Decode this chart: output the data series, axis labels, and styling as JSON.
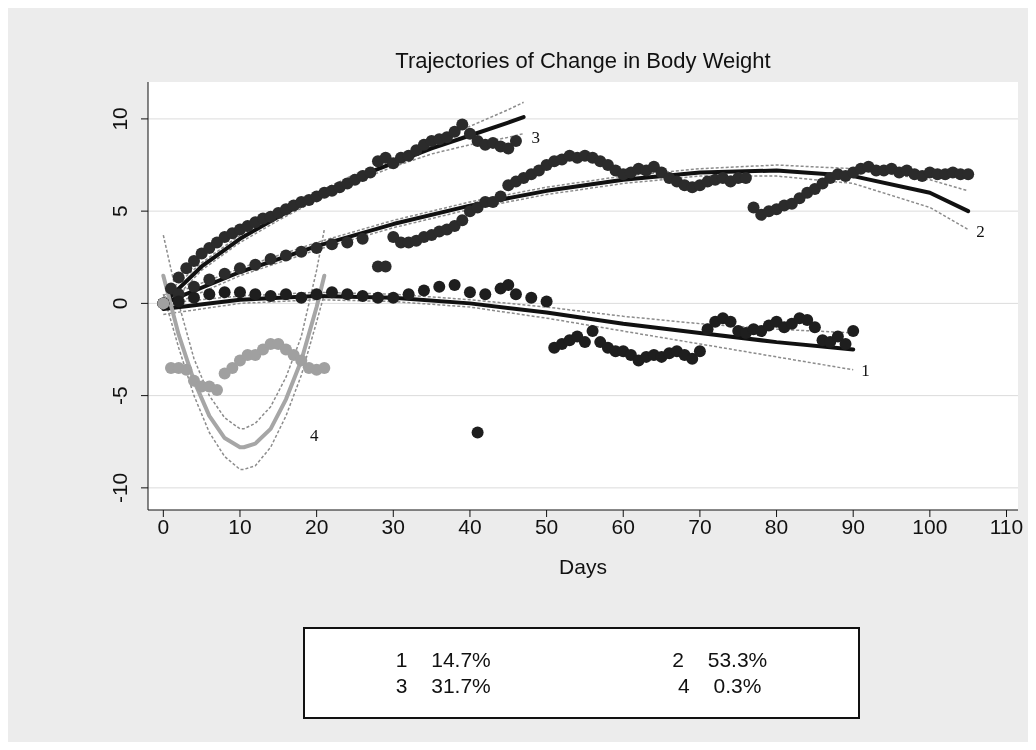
{
  "chart_data": {
    "type": "scatter",
    "title": "Trajectories  of Change  in Body Weight",
    "xlabel": "Days",
    "xlim": [
      -2,
      111.5
    ],
    "ylim": [
      -11.2,
      12
    ],
    "xticks": [
      0,
      10,
      20,
      30,
      40,
      50,
      60,
      70,
      80,
      90,
      100,
      110
    ],
    "yticks": [
      -10,
      -5,
      0,
      5,
      10
    ],
    "grid": "y",
    "marker": "circle",
    "annotations": [
      "1 14.7%",
      "2 53.3%",
      "3 31.7%",
      "4 0.3%"
    ],
    "series": [
      {
        "color": "#2b2b2b",
        "x": [
          0,
          1,
          2,
          3,
          4,
          5,
          6,
          7,
          8,
          9,
          10,
          11,
          12,
          13,
          14,
          15,
          16,
          17,
          18,
          19,
          20,
          21,
          22,
          23,
          24,
          25,
          26,
          27,
          28,
          29,
          30,
          31,
          32,
          33,
          34,
          35,
          36,
          37,
          38,
          39,
          40,
          41,
          42,
          43,
          44,
          45,
          46
        ],
        "values": [
          0,
          0.8,
          1.4,
          1.9,
          2.3,
          2.7,
          3.0,
          3.3,
          3.6,
          3.8,
          4.0,
          4.2,
          4.4,
          4.6,
          4.7,
          4.9,
          5.1,
          5.3,
          5.5,
          5.6,
          5.8,
          6.0,
          6.1,
          6.3,
          6.5,
          6.7,
          6.9,
          7.1,
          7.7,
          7.9,
          7.6,
          7.9,
          8.0,
          8.3,
          8.6,
          8.8,
          8.9,
          9.0,
          9.3,
          9.7,
          9.2,
          8.8,
          8.6,
          8.7,
          8.5,
          8.4,
          8.8
        ]
      },
      {
        "color": "#2b2b2b",
        "x": [
          0,
          2,
          4,
          6,
          8,
          10,
          12,
          14,
          16,
          18,
          20,
          22,
          24,
          26,
          28,
          29,
          30,
          31,
          32,
          33,
          34,
          35,
          36,
          37,
          38,
          39,
          40,
          41,
          42,
          43,
          44,
          45,
          46,
          47,
          48,
          49,
          50,
          51,
          52,
          53,
          54,
          55,
          56,
          57,
          58,
          59,
          60,
          61,
          62,
          63,
          64,
          65,
          66,
          67,
          68,
          69,
          70,
          71,
          72,
          73,
          74,
          75,
          76,
          77,
          78,
          79,
          80,
          81,
          82,
          83,
          84,
          85,
          86,
          87,
          88,
          89,
          90,
          91,
          92,
          93,
          94,
          95,
          96,
          97,
          98,
          99,
          100,
          101,
          102,
          103,
          104,
          105
        ],
        "values": [
          0,
          0.5,
          0.9,
          1.3,
          1.6,
          1.9,
          2.1,
          2.4,
          2.6,
          2.8,
          3.0,
          3.2,
          3.3,
          3.5,
          2.0,
          2.0,
          3.6,
          3.3,
          3.3,
          3.4,
          3.6,
          3.7,
          3.9,
          4.0,
          4.2,
          4.5,
          5.0,
          5.2,
          5.5,
          5.5,
          5.8,
          6.4,
          6.6,
          6.8,
          7.0,
          7.2,
          7.5,
          7.7,
          7.8,
          8.0,
          7.9,
          8.0,
          7.9,
          7.7,
          7.5,
          7.2,
          7.0,
          7.1,
          7.3,
          7.2,
          7.4,
          7.1,
          6.8,
          6.6,
          6.4,
          6.3,
          6.4,
          6.6,
          6.7,
          6.8,
          6.6,
          6.8,
          6.8,
          5.2,
          4.8,
          5.0,
          5.1,
          5.3,
          5.4,
          5.7,
          6.0,
          6.2,
          6.5,
          6.8,
          7.0,
          6.9,
          7.1,
          7.3,
          7.4,
          7.2,
          7.2,
          7.3,
          7.1,
          7.2,
          7.0,
          6.9,
          7.1,
          7.0,
          7.0,
          7.1,
          7.0,
          7.0
        ]
      },
      {
        "color": "#1e1e1e",
        "x": [
          0,
          2,
          4,
          6,
          8,
          10,
          12,
          14,
          16,
          18,
          20,
          22,
          24,
          26,
          28,
          30,
          32,
          34,
          36,
          38,
          40,
          41,
          42,
          44,
          45,
          46,
          48,
          50,
          51,
          52,
          53,
          54,
          55,
          56,
          57,
          58,
          59,
          60,
          61,
          62,
          63,
          64,
          65,
          66,
          67,
          68,
          69,
          70,
          71,
          72,
          73,
          74,
          75,
          76,
          77,
          78,
          79,
          80,
          81,
          82,
          83,
          84,
          85,
          86,
          87,
          88,
          89,
          90
        ],
        "values": [
          0,
          0.1,
          0.3,
          0.5,
          0.6,
          0.6,
          0.5,
          0.4,
          0.5,
          0.3,
          0.5,
          0.6,
          0.5,
          0.4,
          0.3,
          0.3,
          0.5,
          0.7,
          0.9,
          1.0,
          0.6,
          -7.0,
          0.5,
          0.8,
          1.0,
          0.5,
          0.3,
          0.1,
          -2.4,
          -2.2,
          -2.0,
          -1.8,
          -2.1,
          -1.5,
          -2.1,
          -2.4,
          -2.6,
          -2.6,
          -2.8,
          -3.1,
          -2.9,
          -2.8,
          -2.9,
          -2.7,
          -2.6,
          -2.8,
          -3.0,
          -2.6,
          -1.4,
          -1.0,
          -0.8,
          -1.0,
          -1.5,
          -1.6,
          -1.4,
          -1.5,
          -1.2,
          -1.0,
          -1.3,
          -1.1,
          -0.8,
          -0.9,
          -1.3,
          -2.0,
          -2.1,
          -1.8,
          -2.2,
          -1.5
        ]
      },
      {
        "color": "#a0a0a0",
        "x": [
          0,
          1,
          2,
          3,
          4,
          5,
          6,
          7,
          8,
          9,
          10,
          11,
          12,
          13,
          14,
          15,
          16,
          17,
          18,
          19,
          20,
          21
        ],
        "values": [
          0,
          -3.5,
          -3.5,
          -3.6,
          -4.2,
          -4.5,
          -4.5,
          -4.7,
          -3.8,
          -3.5,
          -3.1,
          -2.8,
          -2.8,
          -2.5,
          -2.2,
          -2.2,
          -2.5,
          -2.8,
          -3.1,
          -3.5,
          -3.6,
          -3.5
        ]
      },
      {
        "type": "line",
        "marker": "none",
        "line_style": "dashed",
        "color": "#8c8c8c",
        "x": [
          0,
          10,
          20,
          30,
          40,
          50,
          60,
          70,
          80,
          90
        ],
        "values": [
          -0.6,
          0,
          0.2,
          0.1,
          -0.2,
          -0.8,
          -1.5,
          -2.2,
          -2.9,
          -3.6
        ]
      },
      {
        "type": "line",
        "marker": "none",
        "line_style": "dashed",
        "color": "#8c8c8c",
        "x": [
          0,
          10,
          20,
          30,
          40,
          50,
          60,
          70,
          80,
          90
        ],
        "values": [
          0,
          0.4,
          0.6,
          0.5,
          0.2,
          -0.2,
          -0.7,
          -1.1,
          -1.4,
          -1.6
        ]
      },
      {
        "type": "line",
        "marker": "none",
        "line_style": "dashed",
        "color": "#8c8c8c",
        "x": [
          0,
          10,
          20,
          30,
          40,
          50,
          60,
          70,
          80,
          90,
          100,
          105
        ],
        "values": [
          -0.3,
          1.5,
          2.9,
          4.1,
          5.1,
          5.9,
          6.5,
          6.9,
          6.9,
          6.5,
          5.2,
          4.0
        ]
      },
      {
        "type": "line",
        "marker": "none",
        "line_style": "dashed",
        "color": "#8c8c8c",
        "x": [
          0,
          10,
          20,
          30,
          40,
          50,
          60,
          70,
          80,
          90,
          100,
          105
        ],
        "values": [
          0.3,
          1.9,
          3.3,
          4.5,
          5.5,
          6.3,
          6.9,
          7.3,
          7.5,
          7.3,
          6.7,
          6.1
        ]
      },
      {
        "type": "line",
        "marker": "none",
        "line_style": "dashed",
        "color": "#8c8c8c",
        "x": [
          0,
          5,
          10,
          15,
          20,
          25,
          30,
          35,
          40,
          45,
          47
        ],
        "values": [
          -0.4,
          1.8,
          3.3,
          4.5,
          5.6,
          6.6,
          7.4,
          8.1,
          8.6,
          9.0,
          9.2
        ]
      },
      {
        "type": "line",
        "marker": "none",
        "line_style": "dashed",
        "color": "#8c8c8c",
        "x": [
          0,
          5,
          10,
          15,
          20,
          25,
          30,
          35,
          40,
          45,
          47
        ],
        "values": [
          0.4,
          2.2,
          3.7,
          4.9,
          6.0,
          7.0,
          7.8,
          8.7,
          9.6,
          10.5,
          10.9
        ]
      },
      {
        "type": "line",
        "marker": "none",
        "line_style": "dashed",
        "color": "#8c8c8c",
        "x": [
          0,
          2,
          4,
          6,
          8,
          10,
          10.5,
          12,
          14,
          16,
          18,
          20,
          21
        ],
        "values": [
          0.5,
          -2.4,
          -5.0,
          -7.0,
          -8.3,
          -9.0,
          -9.0,
          -8.8,
          -7.8,
          -6.1,
          -3.9,
          -1.0,
          0.5
        ]
      },
      {
        "type": "line",
        "marker": "none",
        "line_style": "dashed",
        "color": "#8c8c8c",
        "x": [
          0,
          2,
          4,
          6,
          8,
          10,
          10.5,
          12,
          14,
          16,
          18,
          20,
          21
        ],
        "values": [
          3.7,
          0.0,
          -3.0,
          -5.0,
          -6.2,
          -6.8,
          -6.8,
          -6.5,
          -5.6,
          -4.0,
          -1.8,
          1.8,
          4.0
        ]
      },
      {
        "type": "line",
        "marker": "none",
        "line_style": "solid",
        "name": "1",
        "color": "#111111",
        "x": [
          0,
          10,
          20,
          30,
          40,
          50,
          60,
          70,
          80,
          90
        ],
        "values": [
          -0.3,
          0.2,
          0.4,
          0.3,
          0.0,
          -0.5,
          -1.1,
          -1.6,
          -2.1,
          -2.5
        ]
      },
      {
        "type": "line",
        "marker": "none",
        "line_style": "solid",
        "name": "2",
        "color": "#111111",
        "x": [
          0,
          10,
          20,
          30,
          40,
          50,
          60,
          70,
          80,
          90,
          100,
          105
        ],
        "values": [
          0,
          1.7,
          3.1,
          4.3,
          5.3,
          6.1,
          6.7,
          7.1,
          7.2,
          6.9,
          6.0,
          5.0
        ]
      },
      {
        "type": "line",
        "marker": "none",
        "line_style": "solid",
        "name": "3",
        "color": "#111111",
        "x": [
          0,
          5,
          10,
          15,
          20,
          25,
          30,
          35,
          40,
          45,
          47
        ],
        "values": [
          0,
          2.0,
          3.5,
          4.7,
          5.8,
          6.8,
          7.6,
          8.4,
          9.1,
          9.8,
          10.1
        ]
      },
      {
        "type": "line",
        "marker": "none",
        "line_style": "solid",
        "name": "4",
        "color": "#a6a6a6",
        "x": [
          0,
          2,
          4,
          6,
          8,
          10,
          10.5,
          12,
          14,
          16,
          18,
          20,
          21
        ],
        "values": [
          1.5,
          -1.7,
          -4.2,
          -6.1,
          -7.3,
          -7.8,
          -7.8,
          -7.6,
          -6.8,
          -5.2,
          -3.1,
          -0.2,
          1.5
        ]
      }
    ]
  }
}
